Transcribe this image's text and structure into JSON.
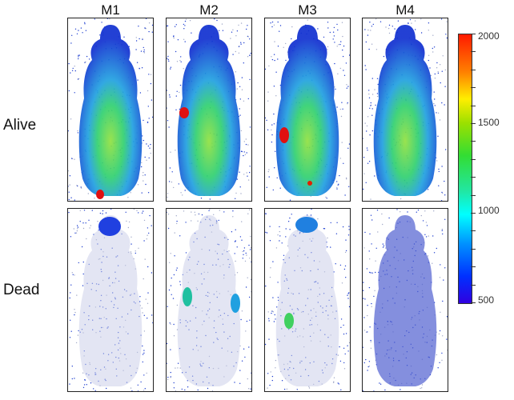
{
  "columns": [
    "M1",
    "M2",
    "M3",
    "M4"
  ],
  "rows": [
    "Alive",
    "Dead"
  ],
  "colorbar": {
    "min": 500,
    "max": 2000,
    "labels": [
      "2000",
      "1500",
      "1000",
      "500"
    ],
    "colors": [
      "#ff1a00",
      "#ffee00",
      "#33dd33",
      "#00ffff",
      "#0030ff"
    ]
  }
}
